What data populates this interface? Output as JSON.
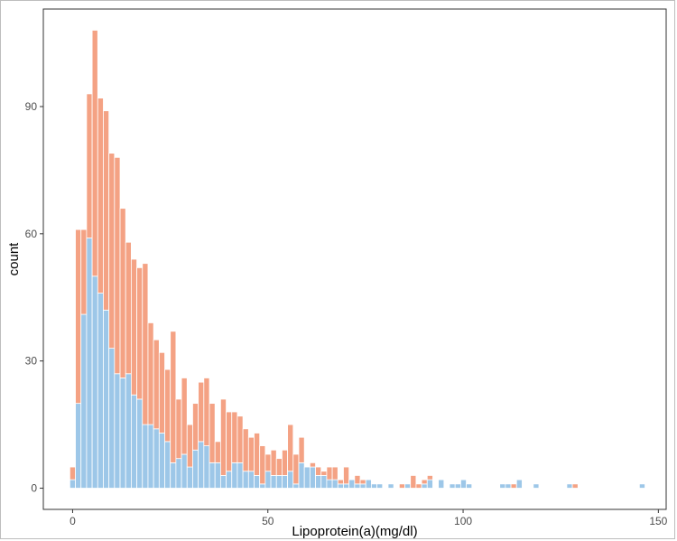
{
  "chart_data": {
    "type": "bar",
    "stacked": true,
    "xlabel": "Lipoprotein(a)(mg/dl)",
    "ylabel": "count",
    "xlim": [
      -7.5,
      152
    ],
    "ylim": [
      -5,
      113
    ],
    "xticks": [
      0,
      50,
      100,
      150
    ],
    "yticks": [
      0,
      30,
      60,
      90
    ],
    "grid": false,
    "bin_width": 1.43,
    "colors": {
      "bottom_series": "#9dc7e8",
      "top_series": "#f4a284",
      "bar_outline": "#ffffff",
      "panel_border": "#333333"
    },
    "series": [
      {
        "values": [
          2,
          20,
          41,
          59,
          50,
          46,
          42,
          33,
          27,
          26,
          27,
          22,
          21,
          15,
          15,
          14,
          13,
          11,
          6,
          7,
          8,
          5,
          9,
          11,
          10,
          6,
          6,
          3,
          4,
          6,
          6,
          4,
          4,
          3,
          1,
          4,
          3,
          3,
          3,
          4,
          1,
          6,
          5,
          5,
          3,
          3,
          2,
          2,
          1,
          1,
          2,
          1,
          1,
          2,
          1,
          1,
          0,
          1,
          0,
          0,
          1,
          0,
          0,
          1,
          2,
          0,
          2,
          0,
          1,
          1,
          2,
          1,
          0,
          0,
          0,
          0,
          0,
          1,
          1,
          0,
          2,
          0,
          0,
          1,
          0,
          0,
          0,
          0,
          0,
          1,
          0,
          0,
          0,
          0,
          0,
          0,
          0,
          0,
          0,
          0,
          0,
          0,
          1
        ]
      },
      {
        "values": [
          3,
          41,
          20,
          34,
          58,
          46,
          47,
          46,
          51,
          40,
          31,
          32,
          31,
          38,
          24,
          21,
          19,
          17,
          31,
          14,
          18,
          10,
          11,
          14,
          16,
          14,
          5,
          18,
          14,
          12,
          11,
          10,
          8,
          10,
          9,
          4,
          6,
          4,
          6,
          11,
          7,
          6,
          0,
          1,
          2,
          1,
          3,
          3,
          1,
          4,
          0,
          2,
          1,
          0,
          0,
          0,
          0,
          0,
          0,
          1,
          0,
          3,
          1,
          1,
          1,
          0,
          0,
          0,
          0,
          0,
          0,
          0,
          0,
          0,
          0,
          0,
          0,
          0,
          0,
          1,
          0,
          0,
          0,
          0,
          0,
          0,
          0,
          0,
          0,
          0,
          1,
          0,
          0,
          0,
          0,
          0,
          0,
          0,
          0,
          0,
          0,
          0,
          0
        ]
      }
    ]
  }
}
